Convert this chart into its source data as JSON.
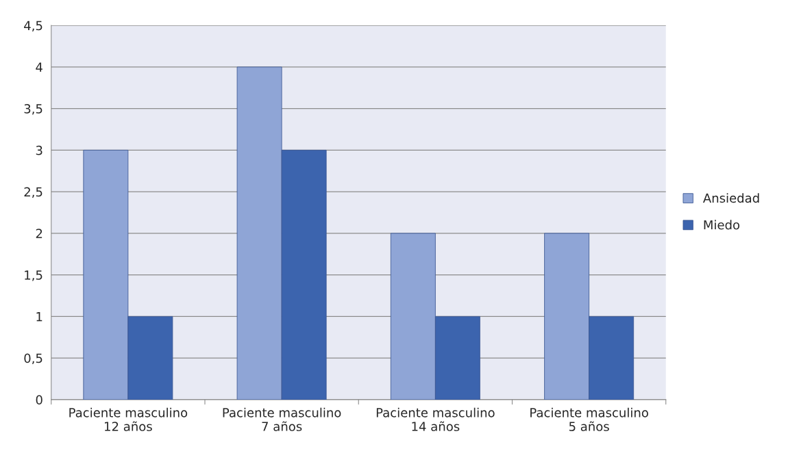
{
  "chart_data": {
    "type": "bar",
    "categories": [
      "Paciente masculino\n12 años",
      "Paciente masculino\n7 años",
      "Paciente masculino\n14 años",
      "Paciente masculino\n5 años"
    ],
    "series": [
      {
        "name": "Ansiedad",
        "color": "#8fa5d6",
        "values": [
          3,
          4,
          2,
          2
        ]
      },
      {
        "name": "Miedo",
        "color": "#3c64ae",
        "values": [
          1,
          3,
          1,
          1
        ]
      }
    ],
    "ylim": [
      0,
      4.5
    ],
    "yticks": [
      0,
      {
        "value": 0.5,
        "label": "0,5"
      },
      1,
      {
        "value": 1.5,
        "label": "1,5"
      },
      2,
      {
        "value": 2.5,
        "label": "2,5"
      },
      3,
      {
        "value": 3.5,
        "label": "3,5"
      },
      4,
      {
        "value": 4.5,
        "label": "4,5"
      }
    ],
    "grid": "y",
    "legend": "right"
  }
}
